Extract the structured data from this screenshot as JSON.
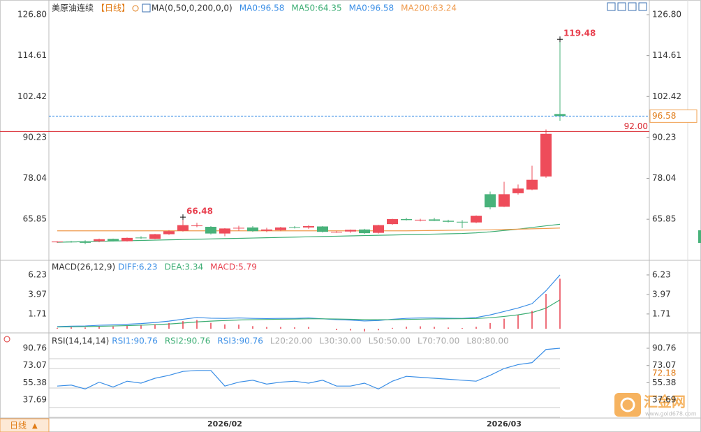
{
  "chart_data": [
    {
      "type": "candlestick",
      "title": "美原油连续",
      "subtitle": "【日线】",
      "indicator": "MA(0,50,0,200,0,0)",
      "categories": [
        null,
        null,
        null,
        null,
        null,
        null,
        null,
        null,
        null,
        null,
        null,
        null,
        "2026/02",
        null,
        null,
        null,
        null,
        null,
        null,
        null,
        null,
        null,
        null,
        null,
        null,
        null,
        null,
        null,
        null,
        null,
        null,
        null,
        "2026/03",
        null,
        null,
        null,
        null
      ],
      "open": [
        59.0,
        59.2,
        59.0,
        59.3,
        60.0,
        59.3,
        60.4,
        60.0,
        61.4,
        62.4,
        63.9,
        63.6,
        61.6,
        63.1,
        63.4,
        62.4,
        62.6,
        63.5,
        63.4,
        63.7,
        62.0,
        62.2,
        62.8,
        61.8,
        64.4,
        65.9,
        65.6,
        65.8,
        65.4,
        65.1,
        64.9,
        73.3,
        69.6,
        73.6,
        74.7,
        78.6,
        97.2
      ],
      "high": [
        59.3,
        59.4,
        59.6,
        60.1,
        60.1,
        60.4,
        60.8,
        61.5,
        62.6,
        66.48,
        64.8,
        63.8,
        63.2,
        63.9,
        63.8,
        63.3,
        63.6,
        63.8,
        64.1,
        63.8,
        62.4,
        62.8,
        63.0,
        64.2,
        66.0,
        66.3,
        66.0,
        66.3,
        65.7,
        65.6,
        67.0,
        74.1,
        77.0,
        76.2,
        81.8,
        92.6,
        119.48
      ],
      "low": [
        58.8,
        58.9,
        58.4,
        59.0,
        59.2,
        59.2,
        60.0,
        59.9,
        61.2,
        62.2,
        63.5,
        61.3,
        60.8,
        62.4,
        62.1,
        62.0,
        62.3,
        63.1,
        63.0,
        61.9,
        61.8,
        61.8,
        61.5,
        61.6,
        64.2,
        65.5,
        65.2,
        65.3,
        64.9,
        63.2,
        64.7,
        68.8,
        69.5,
        73.2,
        74.5,
        78.2,
        95.2
      ],
      "close": [
        59.2,
        59.0,
        58.9,
        59.9,
        59.3,
        60.3,
        60.2,
        61.4,
        62.3,
        64.1,
        64.0,
        61.6,
        63.1,
        63.3,
        62.3,
        62.8,
        63.4,
        63.3,
        63.8,
        62.1,
        62.1,
        62.7,
        61.7,
        64.1,
        65.9,
        65.6,
        65.7,
        65.4,
        65.1,
        64.9,
        66.9,
        69.4,
        73.3,
        75.0,
        77.6,
        91.3,
        96.58
      ],
      "up_color": "#ee4c5a",
      "down_color": "#48b27a",
      "series": [
        {
          "name": "MA0:96.58",
          "color": "#3a8ee6"
        },
        {
          "name": "MA50:64.35",
          "color": "#3dae74",
          "values": [
            59.0,
            59.09,
            59.18,
            59.27,
            59.36,
            59.45,
            59.54,
            59.63,
            59.72,
            59.81,
            59.9,
            59.99,
            60.08,
            60.17,
            60.26,
            60.35,
            60.44,
            60.53,
            60.62,
            60.71,
            60.8,
            60.89,
            60.98,
            61.07,
            61.16,
            61.25,
            61.34,
            61.43,
            61.52,
            61.61,
            61.8,
            62.1,
            62.5,
            62.9,
            63.4,
            63.9,
            64.35
          ]
        },
        {
          "name": "MA0:96.58",
          "color": "#3a8ee6"
        },
        {
          "name": "MA200:63.24",
          "color": "#ef9a4c",
          "values": [
            62.4,
            62.4,
            62.4,
            62.4,
            62.4,
            62.4,
            62.4,
            62.4,
            62.4,
            62.4,
            62.4,
            62.4,
            62.4,
            62.4,
            62.4,
            62.4,
            62.4,
            62.4,
            62.4,
            62.4,
            62.4,
            62.4,
            62.4,
            62.4,
            62.4,
            62.4,
            62.45,
            62.5,
            62.55,
            62.6,
            62.65,
            62.7,
            62.8,
            62.9,
            63.0,
            63.1,
            63.24
          ]
        }
      ],
      "ylim": [
        54.24,
        129.09
      ],
      "yticks": [
        {
          "value": 126.8,
          "label": "126.80"
        },
        114.61,
        102.42,
        90.23,
        78.04,
        65.85
      ],
      "price_line": {
        "value": 92,
        "label": "92.00",
        "color": "#d9262e"
      },
      "last_price": {
        "value": 96.58,
        "label": "96.58"
      },
      "high_annotations": [
        {
          "value": 66.48,
          "label": "66.48"
        },
        {
          "value": 119.48,
          "label": "119.48"
        }
      ]
    },
    {
      "type": "macd",
      "title": "MACD(26,12,9)",
      "series": [
        {
          "name": "DIFF:6.23",
          "color": "#3a8ee6",
          "values": [
            0.25,
            0.3,
            0.32,
            0.4,
            0.45,
            0.52,
            0.6,
            0.72,
            0.88,
            1.1,
            1.3,
            1.22,
            1.2,
            1.25,
            1.2,
            1.18,
            1.2,
            1.2,
            1.25,
            1.15,
            1.05,
            1.0,
            0.9,
            0.95,
            1.1,
            1.2,
            1.25,
            1.25,
            1.22,
            1.2,
            1.3,
            1.6,
            2.0,
            2.4,
            2.9,
            4.4,
            6.23
          ]
        },
        {
          "name": "DEA:3.34",
          "color": "#3dae74",
          "values": [
            0.2,
            0.22,
            0.25,
            0.28,
            0.32,
            0.36,
            0.41,
            0.47,
            0.55,
            0.66,
            0.79,
            0.88,
            0.95,
            1.01,
            1.05,
            1.08,
            1.1,
            1.12,
            1.15,
            1.15,
            1.13,
            1.1,
            1.06,
            1.04,
            1.05,
            1.08,
            1.11,
            1.14,
            1.15,
            1.16,
            1.19,
            1.27,
            1.42,
            1.61,
            1.87,
            2.38,
            3.34
          ]
        },
        {
          "name": "MACD:5.79",
          "color": "#e8404f",
          "kind": "bar",
          "values": [
            0.1,
            0.16,
            0.14,
            0.24,
            0.26,
            0.32,
            0.38,
            0.5,
            0.66,
            0.88,
            1.02,
            0.68,
            0.5,
            0.48,
            0.3,
            0.2,
            0.2,
            0.16,
            0.2,
            0,
            -0.16,
            -0.2,
            -0.32,
            -0.18,
            0.1,
            0.24,
            0.28,
            0.22,
            0.14,
            0.08,
            0.22,
            0.66,
            1.16,
            1.58,
            2.06,
            4.04,
            5.79
          ]
        }
      ],
      "ylim": [
        -0.24,
        7.68
      ],
      "yticks": [
        6.23,
        3.97,
        1.71
      ]
    },
    {
      "type": "rsi",
      "title": "RSI(14,14,14)",
      "series": [
        {
          "name": "RSI1:90.76",
          "color": "#3a8ee6",
          "values": [
            52,
            53,
            49,
            56,
            51,
            57,
            55,
            60,
            63,
            67,
            68,
            68,
            52,
            56,
            58,
            54,
            56,
            57,
            55,
            58,
            52,
            52,
            55,
            49,
            57,
            62,
            61,
            60,
            59,
            58,
            57,
            63,
            70,
            74,
            76,
            89.5,
            90.76
          ]
        },
        {
          "name": "RSI2:90.76",
          "color": "#3dae74"
        },
        {
          "name": "RSI3:90.76",
          "color": "#3a8ee6"
        }
      ],
      "levels": [
        {
          "value": 20,
          "label": "L20:20.00"
        },
        {
          "value": 30,
          "label": "L30:30.00"
        },
        {
          "value": 50,
          "label": "L50:50.00"
        },
        {
          "value": 70,
          "label": "L70:70.00"
        },
        {
          "value": 80,
          "label": "L80:80.00"
        }
      ],
      "ylim": [
        19.94,
        104.35
      ],
      "yticks": [
        90.76,
        73.07,
        55.38,
        37.69
      ],
      "side_label": "72.18"
    }
  ],
  "footer": {
    "period": "日线",
    "watermark": "汇金网",
    "watermark_url": "www.gold678.com"
  }
}
